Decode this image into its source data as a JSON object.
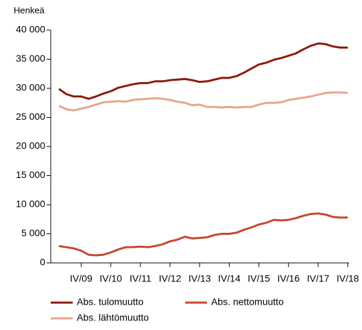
{
  "chart_data": {
    "type": "line",
    "y_label": "Henkeä",
    "categories": [
      null,
      null,
      null,
      "IV/09",
      null,
      null,
      null,
      "IV/10",
      null,
      null,
      null,
      "IV/11",
      null,
      null,
      null,
      "IV/12",
      null,
      null,
      null,
      "IV/13",
      null,
      null,
      null,
      "IV/14",
      null,
      null,
      null,
      "IV/15",
      null,
      null,
      null,
      "IV/16",
      null,
      null,
      null,
      "IV/17",
      null,
      null,
      null,
      "IV/18"
    ],
    "series": [
      {
        "name": "Abs. tulomuutto",
        "color": "#8b1a0e",
        "values": [
          29900,
          29000,
          28600,
          28600,
          28200,
          28600,
          29100,
          29500,
          30100,
          30400,
          30700,
          30900,
          30900,
          31200,
          31200,
          31400,
          31500,
          31600,
          31400,
          31100,
          31200,
          31500,
          31800,
          31800,
          32100,
          32700,
          33400,
          34100,
          34400,
          34900,
          35200,
          35600,
          36000,
          36700,
          37300,
          37700,
          37600,
          37200,
          37000,
          37000
        ]
      },
      {
        "name": "Abs. nettomuutto",
        "color": "#c8472e",
        "values": [
          2900,
          2700,
          2500,
          2100,
          1400,
          1300,
          1400,
          1800,
          2300,
          2700,
          2700,
          2800,
          2700,
          2900,
          3200,
          3700,
          4000,
          4500,
          4200,
          4300,
          4400,
          4800,
          5000,
          5000,
          5200,
          5700,
          6100,
          6600,
          6900,
          7400,
          7300,
          7400,
          7700,
          8100,
          8400,
          8500,
          8300,
          7900,
          7800,
          7800
        ]
      },
      {
        "name": "Abs. lähtömuutto",
        "color": "#e8a48a",
        "values": [
          27000,
          26400,
          26200,
          26500,
          26800,
          27200,
          27600,
          27700,
          27800,
          27700,
          28000,
          28100,
          28200,
          28300,
          28200,
          28000,
          27700,
          27500,
          27100,
          27200,
          26800,
          26800,
          26700,
          26800,
          26700,
          26800,
          26800,
          27200,
          27500,
          27500,
          27600,
          28000,
          28200,
          28400,
          28600,
          28900,
          29200,
          29300,
          29300,
          29200
        ]
      }
    ],
    "ylim": [
      0,
      40000
    ],
    "yticks": [
      0,
      {
        "value": 5000,
        "label": "5 000"
      },
      {
        "value": 10000,
        "label": "10 000"
      },
      {
        "value": 15000,
        "label": "15 000"
      },
      {
        "value": 20000,
        "label": "20 000"
      },
      {
        "value": 25000,
        "label": "25 000"
      },
      {
        "value": 30000,
        "label": "30 000"
      },
      {
        "value": 35000,
        "label": "35 000"
      },
      {
        "value": 40000,
        "label": "40 000"
      }
    ],
    "grid": false
  }
}
